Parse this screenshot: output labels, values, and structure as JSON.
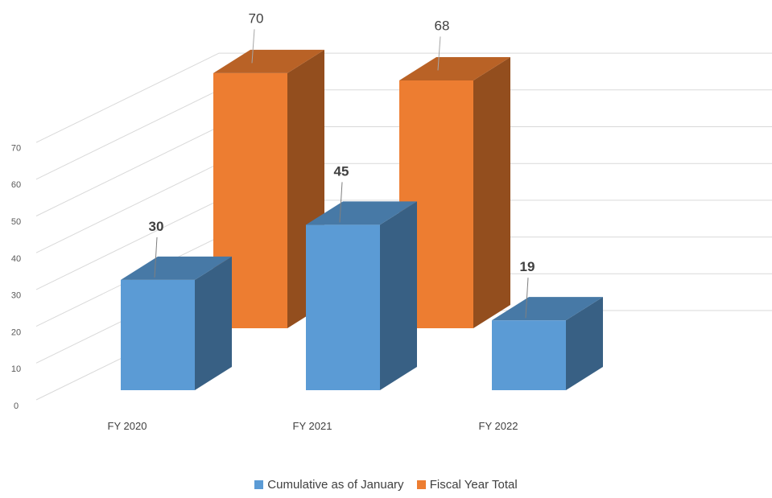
{
  "chart_data": {
    "type": "bar",
    "categories": [
      "FY 2020",
      "FY 2021",
      "FY 2022"
    ],
    "series": [
      {
        "name": "Cumulative as of January",
        "values": [
          30,
          45,
          19
        ],
        "color": "#5b9bd5",
        "label_style": "bold"
      },
      {
        "name": "Fiscal Year Total",
        "values": [
          70,
          null,
          68
        ],
        "color": "#ed7d31",
        "label_style": "normal"
      }
    ],
    "y_ticks": [
      "0",
      "10",
      "20",
      "30",
      "40",
      "50",
      "60",
      "70"
    ],
    "ylim": [
      0,
      70
    ],
    "grid": true,
    "legend_position": "bottom",
    "style": "3d-clustered-column"
  }
}
